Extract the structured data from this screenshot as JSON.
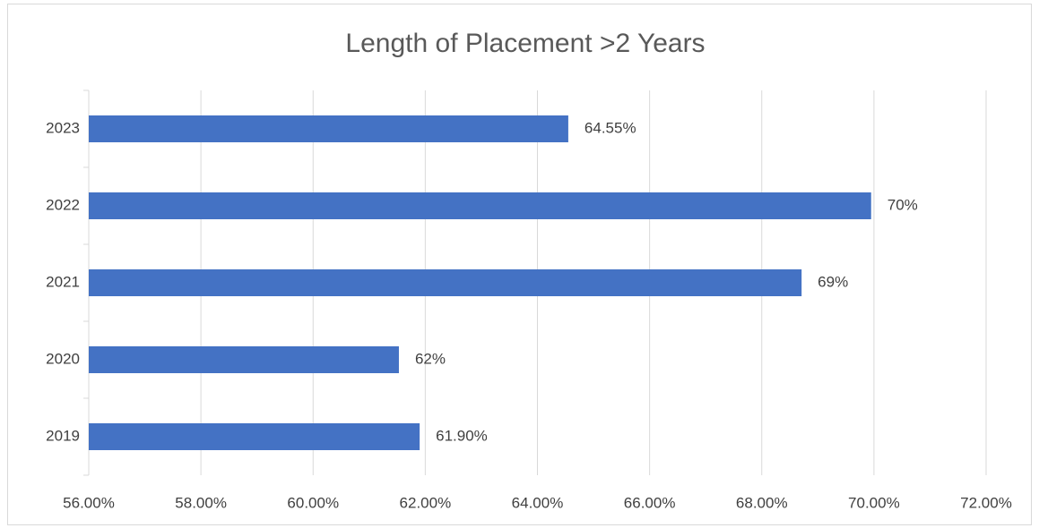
{
  "chart_data": {
    "type": "bar",
    "orientation": "horizontal",
    "title": "Length of Placement >2 Years",
    "categories": [
      "2023",
      "2022",
      "2021",
      "2020",
      "2019"
    ],
    "values": [
      64.55,
      69.95,
      68.71,
      61.53,
      61.9
    ],
    "value_labels": [
      "64.55%",
      "70%",
      "69%",
      "62%",
      "61.90%"
    ],
    "color": "#4472c4",
    "xlim": [
      56,
      72
    ],
    "xticks": [
      {
        "value": 56,
        "label": "56.00%"
      },
      {
        "value": 58,
        "label": "58.00%"
      },
      {
        "value": 60,
        "label": "60.00%"
      },
      {
        "value": 62,
        "label": "62.00%"
      },
      {
        "value": 64,
        "label": "64.00%"
      },
      {
        "value": 66,
        "label": "66.00%"
      },
      {
        "value": 68,
        "label": "68.00%"
      },
      {
        "value": 70,
        "label": "70.00%"
      },
      {
        "value": 72,
        "label": "72.00%"
      }
    ],
    "grid": true
  }
}
